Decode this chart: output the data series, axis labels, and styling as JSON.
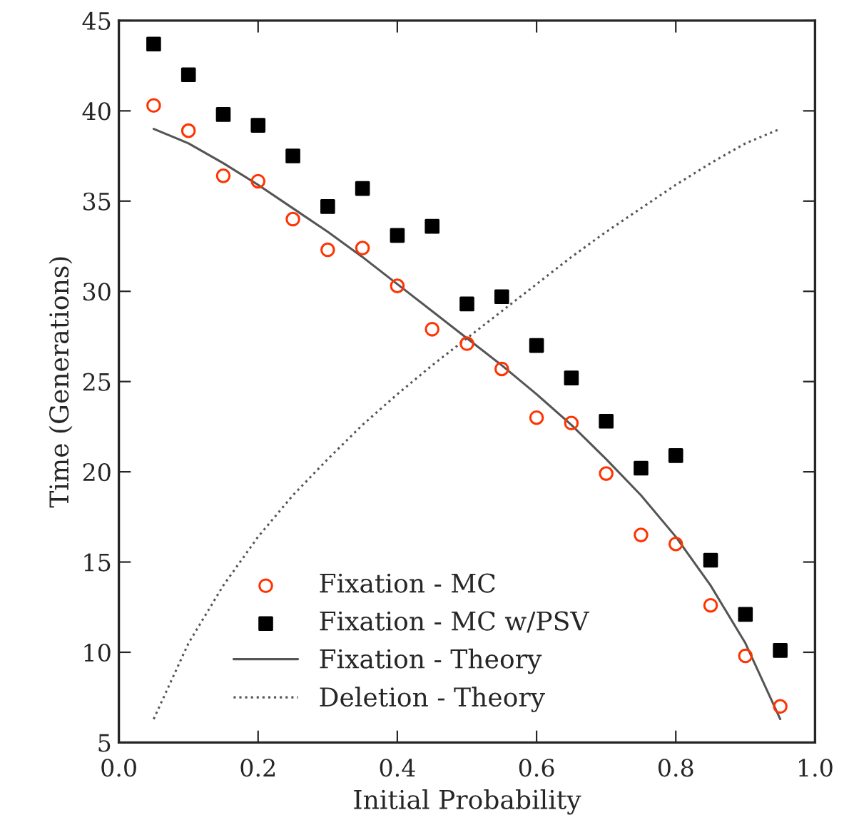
{
  "chart_data": {
    "type": "scatter",
    "xlabel": "Initial Probability",
    "ylabel": "Time (Generations)",
    "x": [
      0.05,
      0.1,
      0.15,
      0.2,
      0.25,
      0.3,
      0.35,
      0.4,
      0.45,
      0.5,
      0.55,
      0.6,
      0.65,
      0.7,
      0.75,
      0.8,
      0.85,
      0.9,
      0.95
    ],
    "series": [
      {
        "name": "Fixation - MC",
        "marker": "circle",
        "color": "#ff3300",
        "values": [
          40.3,
          38.9,
          36.4,
          36.1,
          34.0,
          32.3,
          32.4,
          30.3,
          27.9,
          27.1,
          25.7,
          23.0,
          22.7,
          19.9,
          16.5,
          16.0,
          12.6,
          9.8,
          7.0
        ]
      },
      {
        "name": "Fixation - MC w/PSV",
        "marker": "square",
        "color": "#000000",
        "values": [
          43.7,
          42.0,
          39.8,
          39.2,
          37.5,
          34.7,
          35.7,
          33.1,
          33.6,
          29.3,
          29.7,
          27.0,
          25.2,
          22.8,
          20.2,
          20.9,
          15.1,
          12.1,
          10.1
        ]
      },
      {
        "name": "Fixation - Theory",
        "type": "line",
        "line_style": "solid",
        "color": "#555555",
        "values": [
          39.0,
          38.2,
          37.1,
          35.9,
          34.6,
          33.3,
          31.9,
          30.4,
          28.9,
          27.4,
          25.9,
          24.3,
          22.6,
          20.7,
          18.7,
          16.4,
          13.7,
          10.5,
          6.3
        ]
      },
      {
        "name": "Deletion - Theory",
        "type": "line",
        "line_style": "dotted",
        "color": "#555555",
        "values": [
          6.3,
          10.5,
          13.7,
          16.4,
          18.7,
          20.7,
          22.6,
          24.3,
          25.9,
          27.4,
          28.9,
          30.4,
          31.9,
          33.3,
          34.6,
          35.9,
          37.1,
          38.2,
          39.0
        ]
      }
    ],
    "xlim": [
      0.0,
      1.0
    ],
    "xticks": [
      {
        "value": 0.0,
        "label": "0.0"
      },
      0.2,
      0.4,
      0.6,
      0.8,
      {
        "value": 1.0,
        "label": "1.0"
      }
    ],
    "ylim": [
      5,
      45
    ],
    "yticks": [
      5,
      10,
      15,
      20,
      25,
      30,
      35,
      40,
      45
    ],
    "legend": "bottom",
    "grid": false
  }
}
